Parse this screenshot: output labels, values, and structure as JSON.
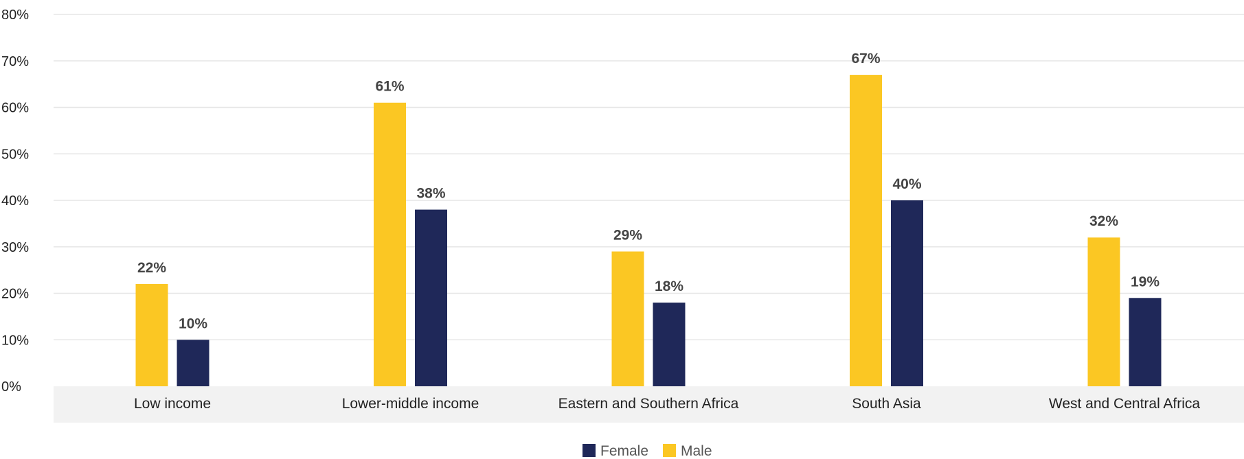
{
  "chart_data": {
    "type": "bar",
    "categories": [
      "Low income",
      "Lower-middle income",
      "Eastern and Southern Africa",
      "South Asia",
      "West and Central Africa"
    ],
    "series": [
      {
        "name": "Male",
        "color": "#FBC723",
        "values": [
          22,
          61,
          29,
          67,
          32
        ],
        "labels": [
          "22%",
          "61%",
          "29%",
          "67%",
          "32%"
        ]
      },
      {
        "name": "Female",
        "color": "#1F2859",
        "values": [
          10,
          38,
          18,
          40,
          19
        ],
        "labels": [
          "10%",
          "38%",
          "18%",
          "40%",
          "19%"
        ]
      }
    ],
    "ylim": [
      0,
      80
    ],
    "yticks": [
      0,
      10,
      20,
      30,
      40,
      50,
      60,
      70,
      80
    ],
    "ytick_labels": [
      "0%",
      "10%",
      "20%",
      "30%",
      "40%",
      "50%",
      "60%",
      "70%",
      "80%"
    ],
    "legend": {
      "position": "bottom-center",
      "order": [
        "Female",
        "Male"
      ]
    },
    "grid": true,
    "colors": {
      "grid": "#E6E6E6",
      "category_band": "#F2F2F2"
    }
  }
}
